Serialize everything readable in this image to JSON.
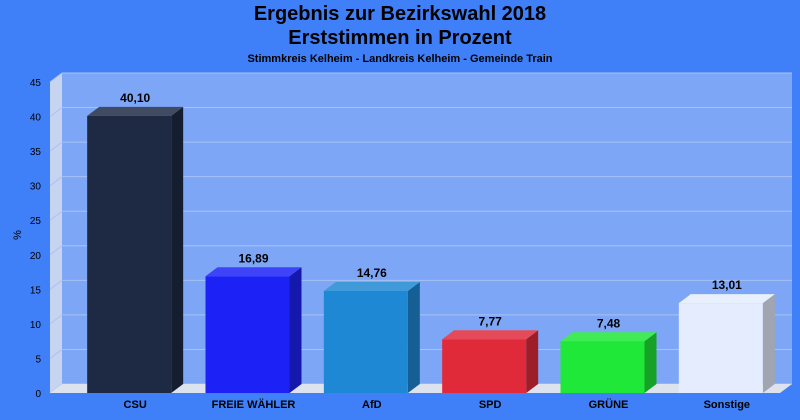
{
  "colors": {
    "background": "#3f7ff7",
    "plot": "#7ea6f7",
    "wall_side": "#c6d4f0",
    "floor": "#dde3ee"
  },
  "chart_data": {
    "type": "bar",
    "title": "Ergebnis zur Bezirkswahl 2018",
    "title2": "Erststimmen in Prozent",
    "subtitle": "Stimmkreis Kelheim - Landkreis Kelheim - Gemeinde Train",
    "ylabel": "%",
    "ylim": [
      0,
      45
    ],
    "yticks": [
      0,
      5,
      10,
      15,
      20,
      25,
      30,
      35,
      40,
      45
    ],
    "grid": true,
    "categories": [
      "CSU",
      "FREIE WÄHLER",
      "AfD",
      "SPD",
      "GRÜNE",
      "Sonstige"
    ],
    "values": [
      40.1,
      16.89,
      14.76,
      7.77,
      7.48,
      13.01
    ],
    "value_labels": [
      "40,10",
      "16,89",
      "14,76",
      "7,77",
      "7,48",
      "13,01"
    ],
    "bar_colors": [
      "#1e2a44",
      "#1c22f5",
      "#1e88d4",
      "#e02a3a",
      "#20e838",
      "#e4ecfd"
    ]
  }
}
